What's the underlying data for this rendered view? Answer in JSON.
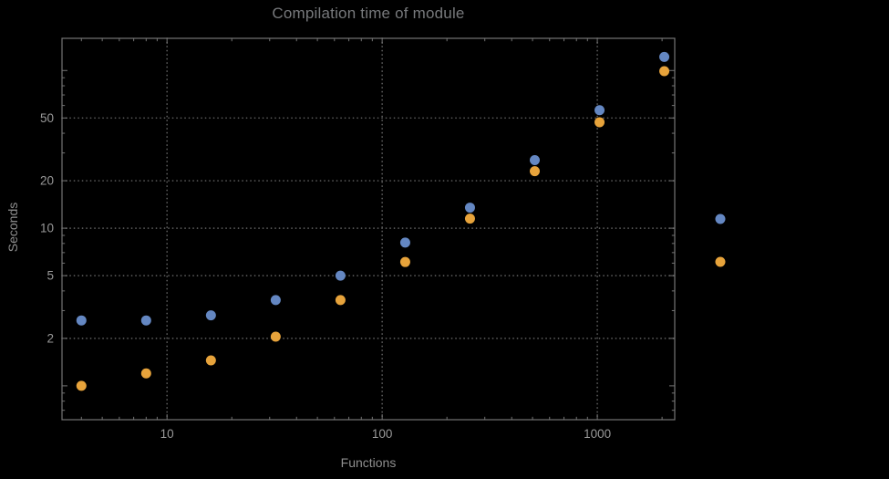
{
  "page": {
    "background": "#000000"
  },
  "chart_data": {
    "type": "scatter",
    "title": "Compilation time of module",
    "xlabel": "Functions",
    "ylabel": "Seconds",
    "x_scale": "log",
    "y_scale": "log",
    "x_range": [
      3.25,
      2290
    ],
    "y_range": [
      0.61,
      160
    ],
    "x_ticks": [
      10,
      100,
      1000
    ],
    "y_ticks": [
      2,
      5,
      10,
      20,
      50
    ],
    "grid": "dotted",
    "frame": true,
    "colors": {
      "background": "#000000",
      "frame": "#747474",
      "grid": "#5c5c5c",
      "tick_text": "#999999",
      "axis_label_text": "#8f8f8f",
      "title_text": "#77797c",
      "series_blue": "#6487c2",
      "series_orange": "#e7a33b"
    },
    "series": [
      {
        "name": "series-blue",
        "color": "#6487c2",
        "x": [
          4,
          8,
          16,
          32,
          64,
          128,
          256,
          512,
          1024,
          2048
        ],
        "y": [
          2.6,
          2.6,
          2.8,
          3.5,
          5.0,
          8.1,
          13.5,
          27,
          56,
          122
        ]
      },
      {
        "name": "series-orange",
        "color": "#e7a33b",
        "x": [
          4,
          8,
          16,
          32,
          64,
          128,
          256,
          512,
          1024,
          2048
        ],
        "y": [
          1.0,
          1.2,
          1.45,
          2.05,
          3.5,
          6.1,
          11.5,
          23,
          47,
          99
        ]
      }
    ],
    "legend": {
      "position": "right-outside",
      "labels_visible": false
    }
  }
}
